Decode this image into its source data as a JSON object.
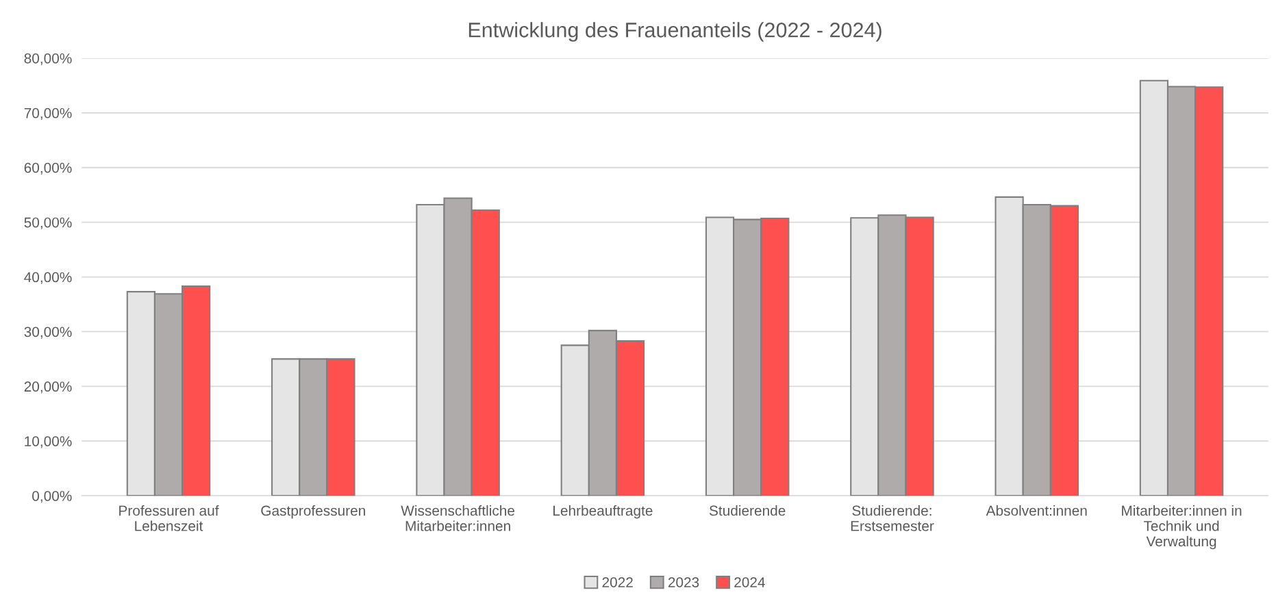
{
  "chart_data": {
    "type": "bar",
    "title": "Entwicklung des Frauenanteils (2022 - 2024)",
    "categories": [
      "Professuren auf\nLebenszeit",
      "Gastprofessuren",
      "Wissenschaftliche\nMitarbeiter:innen",
      "Lehrbeauftragte",
      "Studierende",
      "Studierende:\nErstsemester",
      "Absolvent:innen",
      "Mitarbeiter:innen in\nTechnik und\nVerwaltung"
    ],
    "series": [
      {
        "name": "2022",
        "color": "#e5e5e5",
        "values": [
          37.3,
          25.0,
          53.2,
          27.5,
          50.9,
          50.8,
          54.6,
          75.9
        ]
      },
      {
        "name": "2023",
        "color": "#afabab",
        "values": [
          36.9,
          25.0,
          54.4,
          30.2,
          50.5,
          51.3,
          53.2,
          74.8
        ]
      },
      {
        "name": "2024",
        "color": "#ff5050",
        "values": [
          38.3,
          25.0,
          52.2,
          28.3,
          50.7,
          50.9,
          53.0,
          74.7
        ]
      }
    ],
    "ylim": [
      0,
      80
    ],
    "yticks": [
      {
        "value": 0,
        "label": "0,00%"
      },
      {
        "value": 10,
        "label": "10,00%"
      },
      {
        "value": 20,
        "label": "20,00%"
      },
      {
        "value": 30,
        "label": "30,00%"
      },
      {
        "value": 40,
        "label": "40,00%"
      },
      {
        "value": 50,
        "label": "50,00%"
      },
      {
        "value": 60,
        "label": "60,00%"
      },
      {
        "value": 70,
        "label": "70,00%"
      },
      {
        "value": 80,
        "label": "80,00%"
      }
    ],
    "grid": "y",
    "legend": "bottom"
  }
}
